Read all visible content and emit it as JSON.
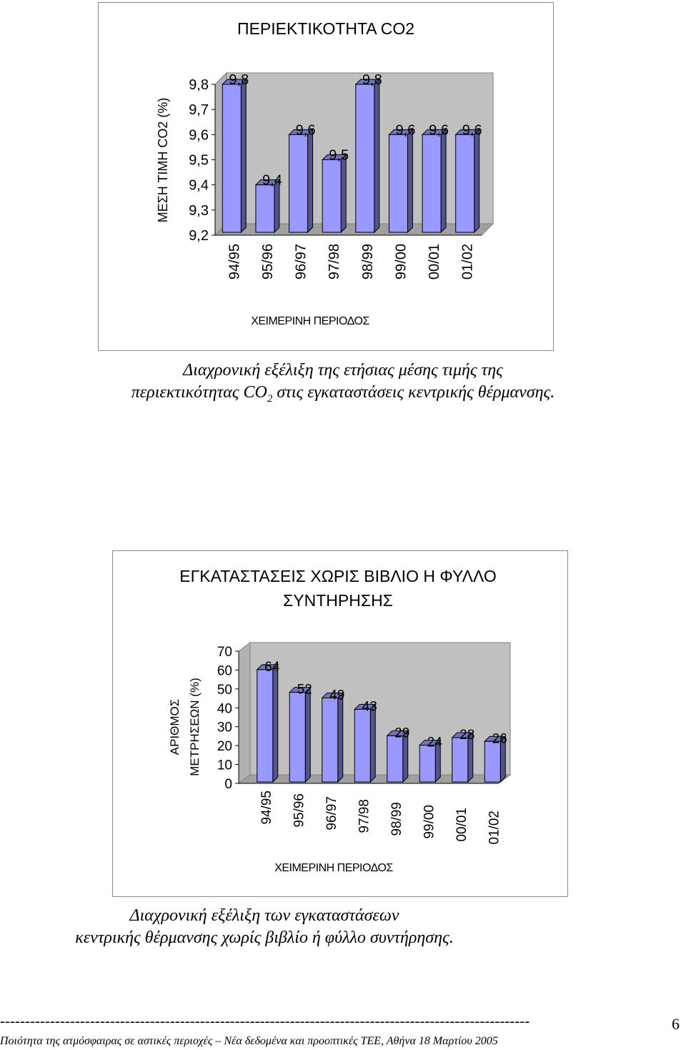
{
  "chart_data": [
    {
      "type": "bar",
      "title": "ΠΕΡΙΕΚΤΙΚΟΤΗΤΑ CO2",
      "xlabel": "ΧΕΙΜΕΡΙΝΗ ΠΕΡΙΟΔΟΣ",
      "ylabel": "ΜΕΣΗ ΤΙΜΗ CO2 (%)",
      "categories": [
        "94/95",
        "95/96",
        "96/97",
        "97/98",
        "98/99",
        "99/00",
        "00/01",
        "01/02"
      ],
      "values": [
        9.8,
        9.4,
        9.6,
        9.5,
        9.8,
        9.6,
        9.6,
        9.6
      ],
      "value_labels": [
        "9,8",
        "9,4",
        "9,6",
        "9,5",
        "9,8",
        "9,6",
        "9,6",
        "9,6"
      ],
      "ylim": [
        9.2,
        9.8
      ],
      "yticks": [
        "9,8",
        "9,7",
        "9,6",
        "9,5",
        "9,4",
        "9,3",
        "9,2"
      ],
      "bar_color": "#9999ff",
      "wall_color": "#c0c0c0",
      "grid": false,
      "style": "3d-bar"
    },
    {
      "type": "bar",
      "title": "ΕΓΚΑΤΑΣΤΑΣΕΙΣ ΧΩΡΙΣ ΒΙΒΛΙΟ Η ΦΥΛΛΟ ΣΥΝΤΗΡΗΣΗΣ",
      "xlabel": "ΧΕΙΜΕΡΙΝΗ ΠΕΡΙΟΔΟΣ",
      "ylabel": [
        "ΑΡΙΘΜΟΣ",
        "ΜΕΤΡΗΣΕΩΝ (%)"
      ],
      "categories": [
        "94/95",
        "95/96",
        "96/97",
        "97/98",
        "98/99",
        "99/00",
        "00/01",
        "01/02"
      ],
      "values": [
        64,
        52,
        49,
        43,
        29,
        24,
        28,
        26
      ],
      "value_labels": [
        "64",
        "52",
        "49",
        "43",
        "29",
        "24",
        "28",
        "26"
      ],
      "ylim": [
        0,
        70
      ],
      "yticks": [
        "70",
        "60",
        "50",
        "40",
        "30",
        "20",
        "10",
        "0"
      ],
      "bar_color": "#9999ff",
      "wall_color": "#c0c0c0",
      "grid": false,
      "style": "3d-bar"
    }
  ],
  "captions": {
    "caption1_pre": "Διαχρονική εξέλιξη της ετήσιας μέσης τιμής της",
    "caption1_line2_pre": "περιεκτικότητας CO",
    "caption1_sub": "2",
    "caption1_line2_post": " στις εγκαταστάσεις κεντρικής θέρμανσης.",
    "caption2_line1": "Διαχρονική εξέλιξη των εγκαταστάσεων",
    "caption2_line2": "κεντρικής θέρμανσης χωρίς βιβλίο ή φύλλο συντήρησης."
  },
  "footer": {
    "rule": "----------------------------------------------------------------------------------------------------------",
    "text": "Ποιότητα της ατμόσφαιρας σε αστικές περιοχές – Νέα δεδομένα και προοπτικές ΤΕΕ, Αθήνα 18 Μαρτίου 2005",
    "page_number": "6"
  }
}
